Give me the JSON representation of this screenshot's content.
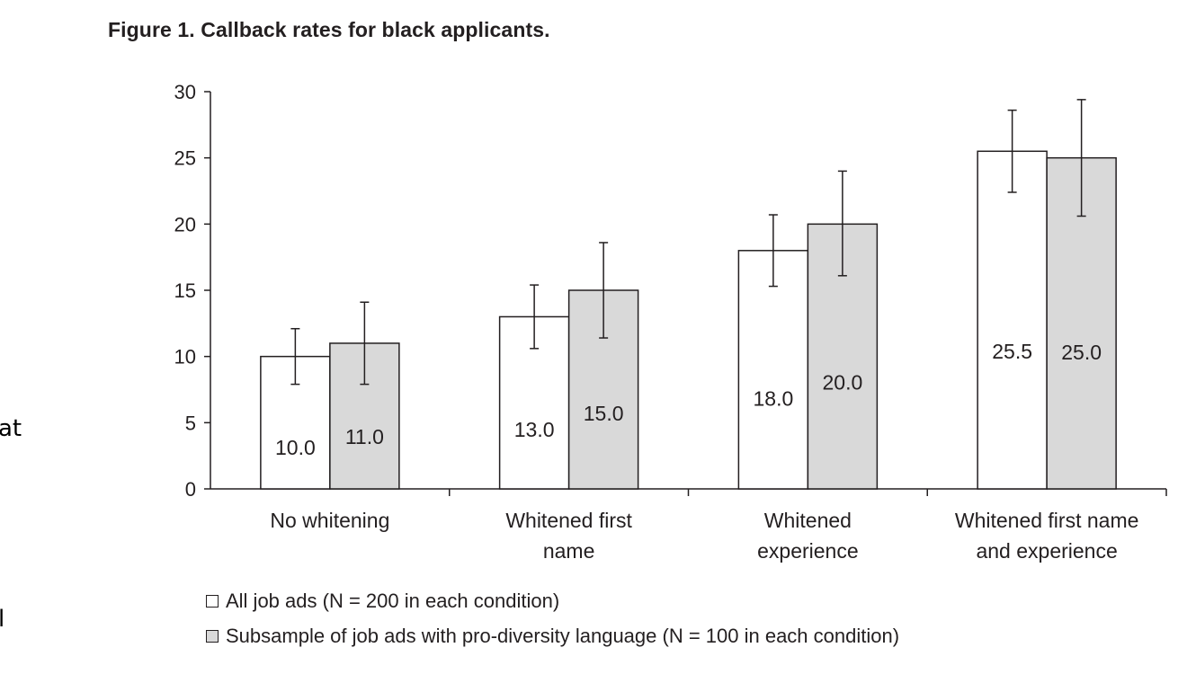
{
  "figure": {
    "title": "Figure 1. Callback rates for black applicants."
  },
  "side_text": {
    "frag1": "at",
    "frag2": "l"
  },
  "legend": {
    "items": [
      {
        "label": "All job ads (N = 200 in each condition)",
        "color": "#ffffff"
      },
      {
        "label": "Subsample of job ads with pro-diversity language (N = 100 in each condition)",
        "color": "#d9d9d9"
      }
    ]
  },
  "chart_data": {
    "type": "bar",
    "categories": [
      [
        "No whitening"
      ],
      [
        "Whitened first",
        "name"
      ],
      [
        "Whitened",
        "experience"
      ],
      [
        "Whitened first name",
        "and experience"
      ]
    ],
    "series": [
      {
        "name": "All job ads (N = 200 in each condition)",
        "color": "#ffffff",
        "values": [
          10.0,
          13.0,
          18.0,
          25.5
        ],
        "error_low": [
          7.9,
          10.6,
          15.3,
          22.4
        ],
        "error_high": [
          12.1,
          15.4,
          20.7,
          28.6
        ],
        "labels": [
          "10.0",
          "13.0",
          "18.0",
          "25.5"
        ]
      },
      {
        "name": "Subsample of job ads with pro-diversity language (N = 100 in each condition)",
        "color": "#d9d9d9",
        "values": [
          11.0,
          15.0,
          20.0,
          25.0
        ],
        "error_low": [
          7.9,
          11.4,
          16.1,
          20.6
        ],
        "error_high": [
          14.1,
          18.6,
          24.0,
          29.4
        ],
        "labels": [
          "11.0",
          "15.0",
          "20.0",
          "25.0"
        ]
      }
    ],
    "yticks": [
      0,
      5,
      10,
      15,
      20,
      25,
      30
    ],
    "ylim": [
      0,
      30
    ],
    "xlabel": "",
    "ylabel": "",
    "grid": false,
    "legend_position": "bottom"
  }
}
